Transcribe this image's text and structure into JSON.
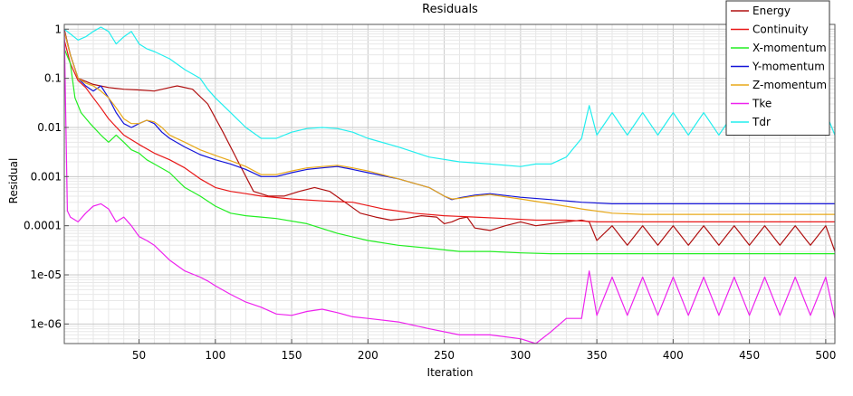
{
  "chart_data": {
    "type": "line",
    "title": "Residuals",
    "xlabel": "Iteration",
    "ylabel": "Residual",
    "xlim": [
      1,
      506
    ],
    "ylim": [
      4e-07,
      1.25
    ],
    "yscale": "log",
    "grid": true,
    "legend_position": "top-right",
    "x_ticks": [
      50,
      100,
      150,
      200,
      250,
      300,
      350,
      400,
      450,
      500
    ],
    "x_tick_labels": [
      "50",
      "100",
      "150",
      "200",
      "250",
      "300",
      "350",
      "400",
      "450",
      "500"
    ],
    "y_ticks": [
      1,
      0.1,
      0.01,
      0.001,
      0.0001,
      1e-05,
      1e-06
    ],
    "y_tick_labels": [
      "1",
      "0.1",
      "0.01",
      "0.001",
      "0.0001",
      "1e-05",
      "1e-06"
    ],
    "series": [
      {
        "name": "Energy",
        "color": "#b01010",
        "x": [
          1,
          5,
          10,
          20,
          30,
          40,
          50,
          60,
          70,
          75,
          85,
          95,
          105,
          115,
          125,
          135,
          145,
          155,
          165,
          175,
          185,
          195,
          205,
          215,
          225,
          235,
          245,
          250,
          255,
          260,
          265,
          270,
          280,
          290,
          300,
          310,
          320,
          330,
          340,
          345,
          350,
          360,
          370,
          380,
          390,
          400,
          410,
          420,
          430,
          440,
          450,
          460,
          470,
          480,
          490,
          500,
          506
        ],
        "y": [
          1.0,
          0.3,
          0.1,
          0.075,
          0.065,
          0.06,
          0.058,
          0.055,
          0.065,
          0.07,
          0.06,
          0.03,
          0.008,
          0.002,
          0.0005,
          0.0004,
          0.0004,
          0.0005,
          0.0006,
          0.0005,
          0.0003,
          0.00018,
          0.00015,
          0.00013,
          0.00014,
          0.00016,
          0.00015,
          0.00011,
          0.00012,
          0.00014,
          0.00015,
          9e-05,
          8e-05,
          0.0001,
          0.00012,
          0.0001,
          0.00011,
          0.00012,
          0.00013,
          0.00012,
          5e-05,
          0.0001,
          4e-05,
          0.0001,
          4e-05,
          0.0001,
          4e-05,
          0.0001,
          4e-05,
          0.0001,
          4e-05,
          0.0001,
          4e-05,
          0.0001,
          4e-05,
          0.0001,
          3e-05
        ]
      },
      {
        "name": "Continuity",
        "color": "#e81818",
        "x": [
          1,
          5,
          10,
          15,
          20,
          25,
          30,
          40,
          50,
          60,
          70,
          80,
          90,
          100,
          110,
          120,
          130,
          150,
          170,
          190,
          210,
          230,
          250,
          270,
          290,
          310,
          330,
          350,
          370,
          390,
          410,
          430,
          450,
          470,
          490,
          506
        ],
        "y": [
          0.6,
          0.2,
          0.09,
          0.065,
          0.04,
          0.025,
          0.015,
          0.007,
          0.0045,
          0.003,
          0.0022,
          0.0015,
          0.0009,
          0.0006,
          0.0005,
          0.00045,
          0.0004,
          0.00035,
          0.00032,
          0.0003,
          0.00022,
          0.00018,
          0.00016,
          0.00015,
          0.00014,
          0.00013,
          0.00013,
          0.00012,
          0.00012,
          0.00012,
          0.00012,
          0.00012,
          0.00012,
          0.00012,
          0.00012,
          0.00012
        ]
      },
      {
        "name": "X-momentum",
        "color": "#22ee22",
        "x": [
          1,
          5,
          8,
          12,
          18,
          25,
          30,
          35,
          40,
          45,
          50,
          55,
          60,
          70,
          80,
          90,
          100,
          110,
          120,
          130,
          140,
          160,
          180,
          200,
          220,
          240,
          260,
          280,
          300,
          320,
          340,
          360,
          380,
          400,
          420,
          440,
          460,
          480,
          500,
          506
        ],
        "y": [
          0.4,
          0.2,
          0.04,
          0.02,
          0.012,
          0.007,
          0.005,
          0.007,
          0.005,
          0.0035,
          0.003,
          0.0022,
          0.0018,
          0.0012,
          0.0006,
          0.0004,
          0.00025,
          0.00018,
          0.00016,
          0.00015,
          0.00014,
          0.00011,
          7e-05,
          5e-05,
          4e-05,
          3.5e-05,
          3e-05,
          3e-05,
          2.8e-05,
          2.7e-05,
          2.7e-05,
          2.7e-05,
          2.7e-05,
          2.7e-05,
          2.7e-05,
          2.7e-05,
          2.7e-05,
          2.7e-05,
          2.7e-05,
          2.7e-05
        ]
      },
      {
        "name": "Y-momentum",
        "color": "#1414d8",
        "x": [
          1,
          5,
          10,
          15,
          20,
          25,
          30,
          35,
          40,
          45,
          50,
          55,
          60,
          65,
          70,
          80,
          90,
          100,
          110,
          120,
          130,
          140,
          150,
          160,
          170,
          180,
          190,
          200,
          220,
          240,
          250,
          255,
          260,
          270,
          280,
          300,
          320,
          340,
          360,
          380,
          400,
          420,
          440,
          460,
          480,
          500,
          506
        ],
        "y": [
          0.9,
          0.3,
          0.1,
          0.07,
          0.055,
          0.07,
          0.04,
          0.02,
          0.012,
          0.01,
          0.012,
          0.014,
          0.012,
          0.008,
          0.006,
          0.004,
          0.0028,
          0.0022,
          0.0018,
          0.0014,
          0.001,
          0.001,
          0.0012,
          0.0014,
          0.0015,
          0.0016,
          0.0014,
          0.0012,
          0.0009,
          0.0006,
          0.0004,
          0.00034,
          0.00037,
          0.00042,
          0.00045,
          0.00038,
          0.00034,
          0.0003,
          0.00028,
          0.00028,
          0.00028,
          0.00028,
          0.00028,
          0.00028,
          0.00028,
          0.00028,
          0.00028
        ]
      },
      {
        "name": "Z-momentum",
        "color": "#e8a818",
        "x": [
          1,
          5,
          10,
          15,
          20,
          25,
          30,
          35,
          40,
          45,
          50,
          55,
          60,
          65,
          70,
          80,
          90,
          100,
          110,
          120,
          130,
          140,
          150,
          160,
          170,
          180,
          190,
          200,
          220,
          240,
          250,
          255,
          260,
          270,
          280,
          300,
          320,
          340,
          360,
          380,
          400,
          420,
          440,
          460,
          480,
          500,
          506
        ],
        "y": [
          0.9,
          0.3,
          0.1,
          0.08,
          0.07,
          0.055,
          0.04,
          0.025,
          0.015,
          0.012,
          0.012,
          0.014,
          0.013,
          0.01,
          0.007,
          0.005,
          0.0035,
          0.0027,
          0.0021,
          0.0016,
          0.0011,
          0.0011,
          0.0013,
          0.0015,
          0.0016,
          0.0017,
          0.0015,
          0.0013,
          0.0009,
          0.0006,
          0.0004,
          0.00035,
          0.00036,
          0.0004,
          0.00043,
          0.00035,
          0.00028,
          0.00022,
          0.00018,
          0.00017,
          0.00017,
          0.00017,
          0.00017,
          0.00017,
          0.00017,
          0.00017,
          0.00017
        ]
      },
      {
        "name": "Tke",
        "color": "#ee22ee",
        "x": [
          1,
          3,
          5,
          10,
          15,
          20,
          25,
          30,
          35,
          40,
          45,
          50,
          55,
          60,
          70,
          80,
          90,
          95,
          100,
          110,
          120,
          130,
          140,
          150,
          160,
          170,
          180,
          190,
          200,
          220,
          240,
          260,
          280,
          300,
          310,
          320,
          330,
          340,
          345,
          350,
          360,
          370,
          380,
          390,
          400,
          410,
          420,
          430,
          440,
          450,
          460,
          470,
          480,
          490,
          500,
          506
        ],
        "y": [
          1.0,
          0.0002,
          0.00015,
          0.00012,
          0.00018,
          0.00025,
          0.00028,
          0.00022,
          0.00012,
          0.00015,
          0.0001,
          6e-05,
          5e-05,
          4e-05,
          2e-05,
          1.2e-05,
          9e-06,
          7.5e-06,
          6e-06,
          4e-06,
          2.8e-06,
          2.2e-06,
          1.6e-06,
          1.5e-06,
          1.8e-06,
          2e-06,
          1.7e-06,
          1.4e-06,
          1.3e-06,
          1.1e-06,
          8e-07,
          6e-07,
          6e-07,
          5e-07,
          4e-07,
          7e-07,
          1.3e-06,
          1.3e-06,
          1.2e-05,
          1.5e-06,
          9e-06,
          1.5e-06,
          9e-06,
          1.5e-06,
          9e-06,
          1.5e-06,
          9e-06,
          1.5e-06,
          9e-06,
          1.5e-06,
          9e-06,
          1.5e-06,
          9e-06,
          1.5e-06,
          9e-06,
          1.3e-06
        ]
      },
      {
        "name": "Tdr",
        "color": "#22eeee",
        "x": [
          1,
          5,
          10,
          15,
          20,
          25,
          30,
          35,
          40,
          45,
          50,
          55,
          60,
          70,
          80,
          90,
          95,
          100,
          110,
          120,
          130,
          140,
          150,
          160,
          170,
          180,
          190,
          200,
          220,
          240,
          260,
          280,
          300,
          310,
          320,
          330,
          340,
          345,
          350,
          360,
          370,
          380,
          390,
          400,
          410,
          420,
          430,
          440,
          450,
          460,
          470,
          480,
          490,
          500,
          506
        ],
        "y": [
          1.0,
          0.8,
          0.6,
          0.7,
          0.9,
          1.1,
          0.9,
          0.5,
          0.7,
          0.9,
          0.5,
          0.4,
          0.35,
          0.25,
          0.15,
          0.1,
          0.06,
          0.04,
          0.02,
          0.01,
          0.006,
          0.006,
          0.008,
          0.0095,
          0.01,
          0.0095,
          0.008,
          0.006,
          0.004,
          0.0025,
          0.002,
          0.0018,
          0.0016,
          0.0018,
          0.0018,
          0.0025,
          0.006,
          0.028,
          0.007,
          0.02,
          0.007,
          0.02,
          0.007,
          0.02,
          0.007,
          0.02,
          0.007,
          0.02,
          0.007,
          0.02,
          0.007,
          0.02,
          0.007,
          0.02,
          0.007
        ]
      }
    ]
  }
}
